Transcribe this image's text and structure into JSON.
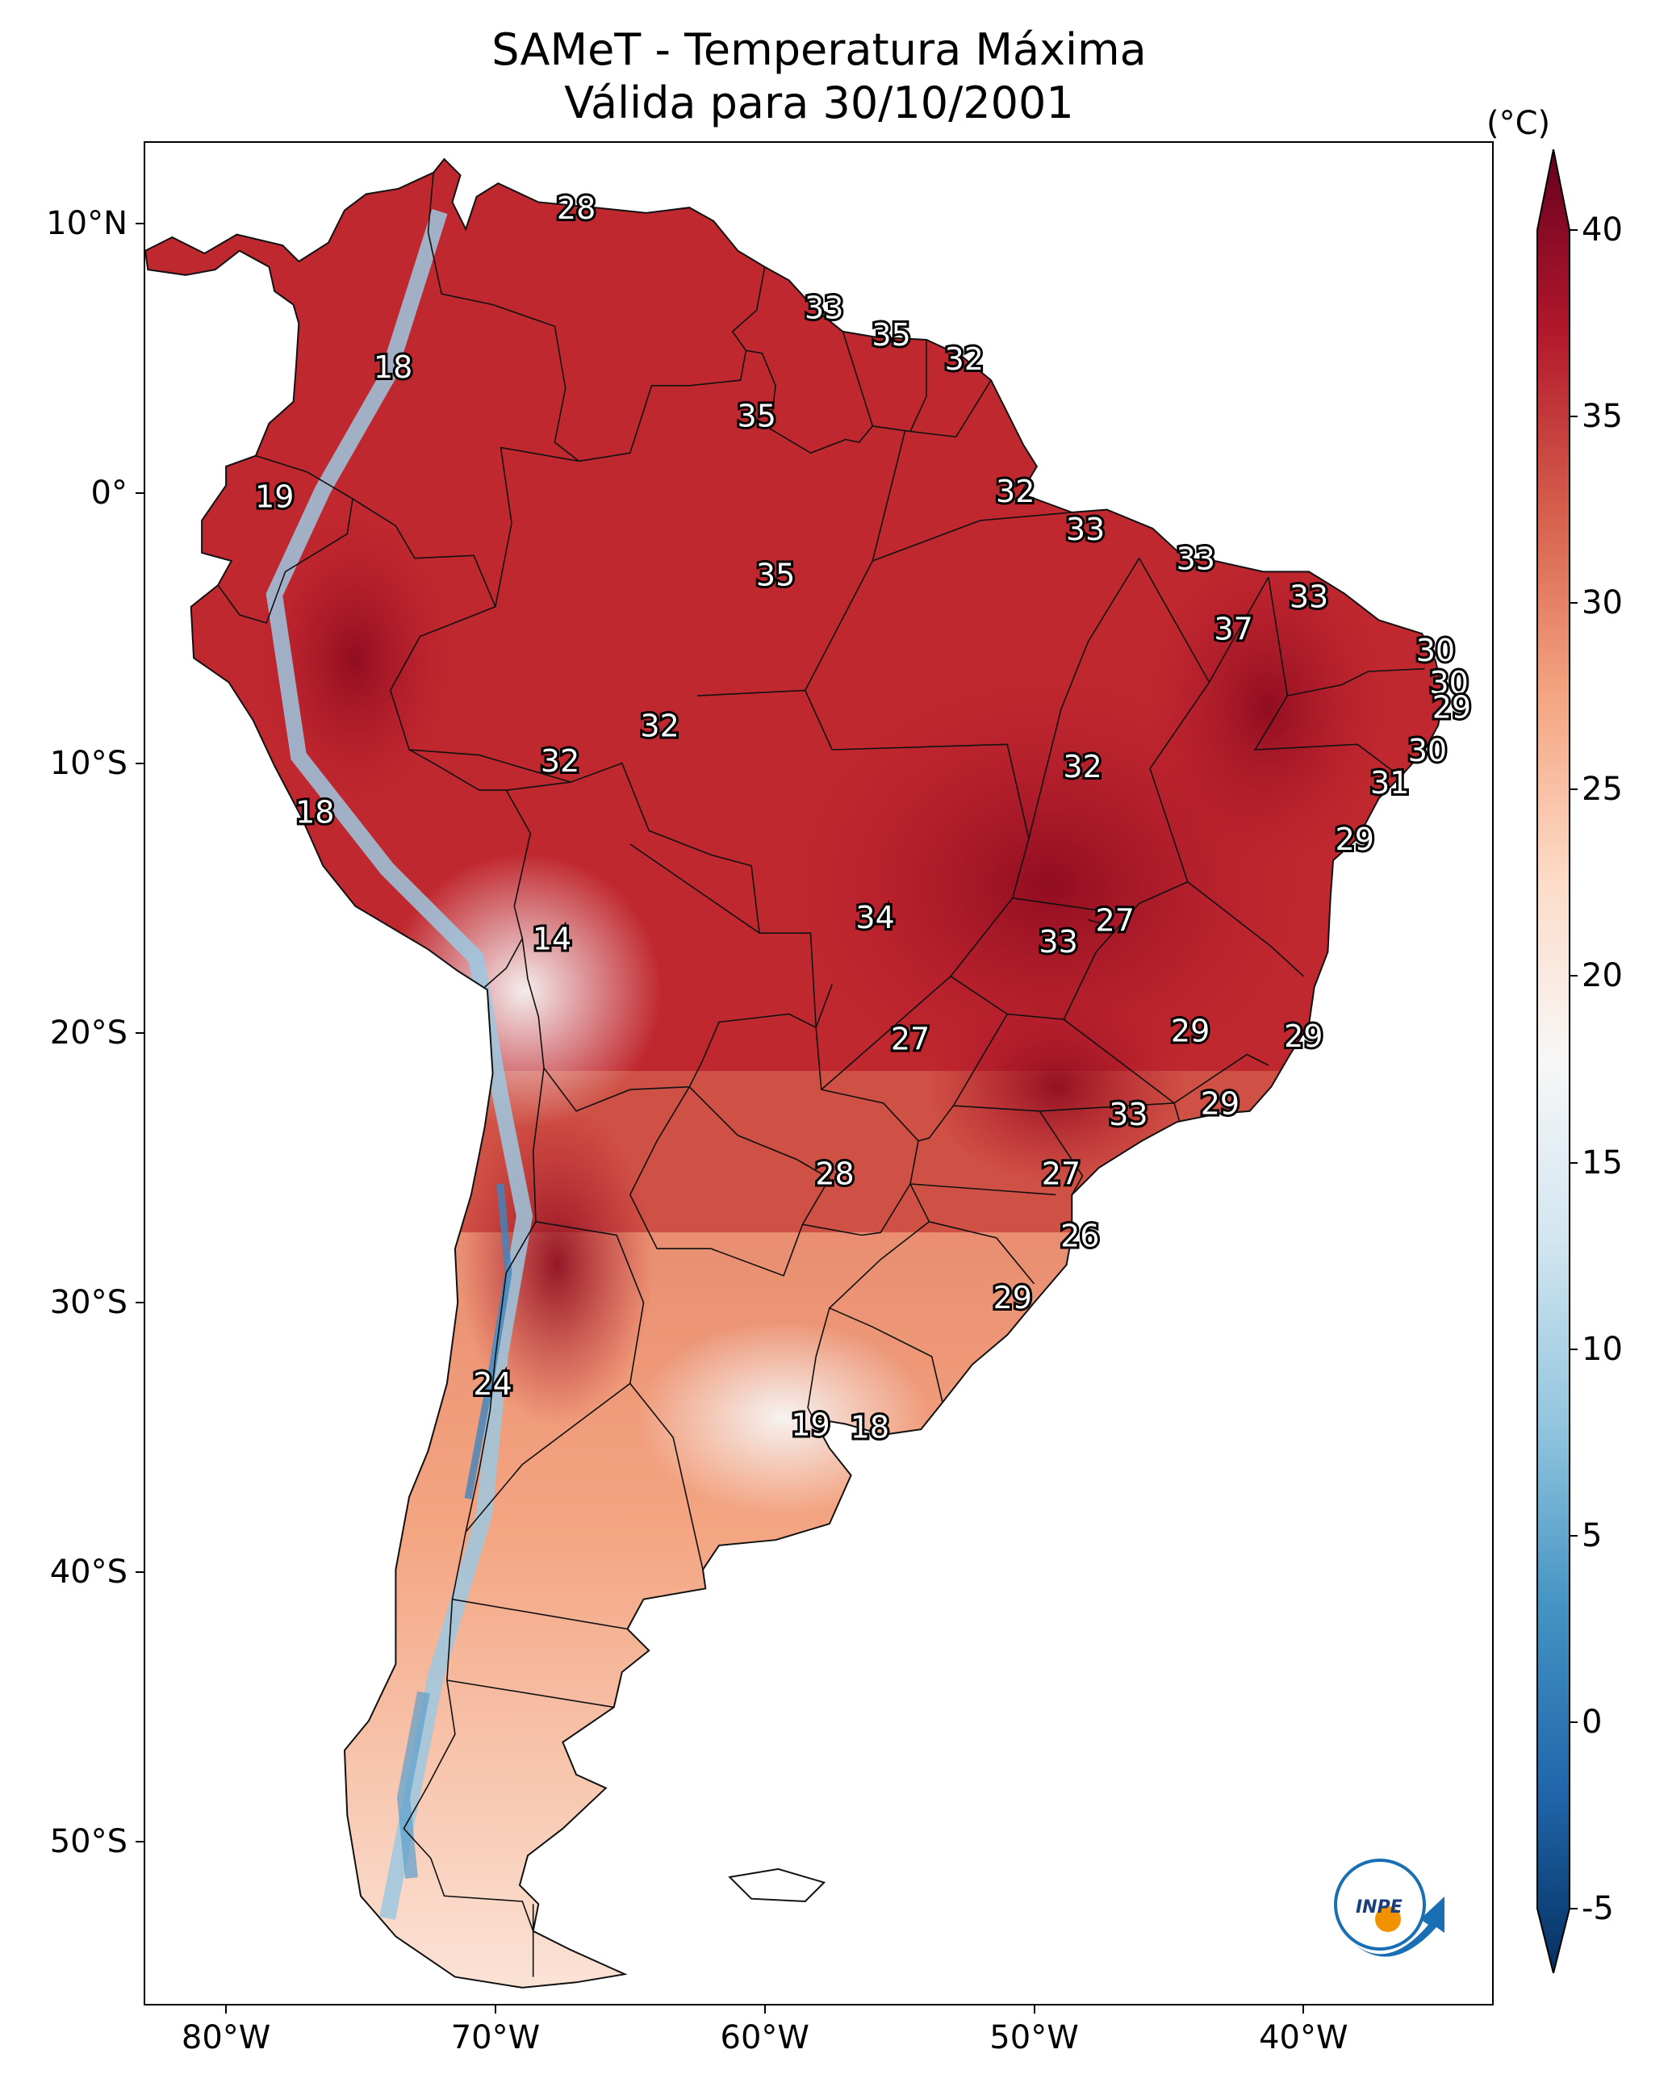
{
  "title": {
    "line1": "SAMeT - Temperatura Máxima",
    "line2": "Válida para 30/10/2001"
  },
  "map": {
    "lon_range": [
      -83,
      -33
    ],
    "lat_range": [
      -56,
      13
    ],
    "y_ticks": [
      {
        "label": "10°N",
        "lat": 10
      },
      {
        "label": "0°",
        "lat": 0
      },
      {
        "label": "10°S",
        "lat": -10
      },
      {
        "label": "20°S",
        "lat": -20
      },
      {
        "label": "30°S",
        "lat": -30
      },
      {
        "label": "40°S",
        "lat": -40
      },
      {
        "label": "50°S",
        "lat": -50
      }
    ],
    "x_ticks": [
      {
        "label": "80°W",
        "lon": -80
      },
      {
        "label": "70°W",
        "lon": -70
      },
      {
        "label": "60°W",
        "lon": -60
      },
      {
        "label": "50°W",
        "lon": -50
      },
      {
        "label": "40°W",
        "lon": -40
      }
    ],
    "labels": [
      {
        "text": "28",
        "lon": -67,
        "lat": 10.5
      },
      {
        "text": "33",
        "lon": -57.8,
        "lat": 6.8
      },
      {
        "text": "35",
        "lon": -55.3,
        "lat": 5.8
      },
      {
        "text": "32",
        "lon": -52.6,
        "lat": 4.9
      },
      {
        "text": "18",
        "lon": -73.8,
        "lat": 4.6
      },
      {
        "text": "35",
        "lon": -60.3,
        "lat": 2.8
      },
      {
        "text": "19",
        "lon": -78.2,
        "lat": -0.2
      },
      {
        "text": "32",
        "lon": -50.7,
        "lat": 0
      },
      {
        "text": "33",
        "lon": -48.1,
        "lat": -1.4
      },
      {
        "text": "33",
        "lon": -44.0,
        "lat": -2.5
      },
      {
        "text": "35",
        "lon": -59.6,
        "lat": -3.1
      },
      {
        "text": "33",
        "lon": -39.8,
        "lat": -3.9
      },
      {
        "text": "37",
        "lon": -42.6,
        "lat": -5.1
      },
      {
        "text": "30",
        "lon": -35.1,
        "lat": -5.9
      },
      {
        "text": "30",
        "lon": -34.6,
        "lat": -7.1
      },
      {
        "text": "29",
        "lon": -34.5,
        "lat": -8.0
      },
      {
        "text": "32",
        "lon": -63.9,
        "lat": -8.7
      },
      {
        "text": "32",
        "lon": -67.6,
        "lat": -10.0
      },
      {
        "text": "32",
        "lon": -48.2,
        "lat": -10.2
      },
      {
        "text": "30",
        "lon": -35.4,
        "lat": -9.6
      },
      {
        "text": "31",
        "lon": -36.8,
        "lat": -10.8
      },
      {
        "text": "18",
        "lon": -76.7,
        "lat": -11.9
      },
      {
        "text": "29",
        "lon": -38.1,
        "lat": -12.9
      },
      {
        "text": "27",
        "lon": -47.0,
        "lat": -15.9
      },
      {
        "text": "34",
        "lon": -55.9,
        "lat": -15.8
      },
      {
        "text": "33",
        "lon": -49.1,
        "lat": -16.7
      },
      {
        "text": "14",
        "lon": -67.9,
        "lat": -16.6
      },
      {
        "text": "29",
        "lon": -44.2,
        "lat": -20.0
      },
      {
        "text": "29",
        "lon": -40.0,
        "lat": -20.2
      },
      {
        "text": "27",
        "lon": -54.6,
        "lat": -20.3
      },
      {
        "text": "29",
        "lon": -43.1,
        "lat": -22.7
      },
      {
        "text": "33",
        "lon": -46.5,
        "lat": -23.1
      },
      {
        "text": "28",
        "lon": -57.4,
        "lat": -25.3
      },
      {
        "text": "27",
        "lon": -49.0,
        "lat": -25.3
      },
      {
        "text": "26",
        "lon": -48.3,
        "lat": -27.6
      },
      {
        "text": "29",
        "lon": -50.8,
        "lat": -29.9
      },
      {
        "text": "24",
        "lon": -70.1,
        "lat": -33.1
      },
      {
        "text": "19",
        "lon": -58.3,
        "lat": -34.6
      },
      {
        "text": "18",
        "lon": -56.1,
        "lat": -34.7
      }
    ]
  },
  "colorbar": {
    "unit": "(°C)",
    "min": -5,
    "max": 40,
    "ticks": [
      "-5",
      "0",
      "5",
      "10",
      "15",
      "20",
      "25",
      "30",
      "35",
      "40"
    ],
    "colors": [
      "#053061",
      "#2166ac",
      "#4393c3",
      "#92c5de",
      "#d1e5f0",
      "#f7f7f7",
      "#fddbc7",
      "#f4a582",
      "#d6604d",
      "#b2182b",
      "#67001f"
    ]
  },
  "logo": {
    "text": "INPE"
  }
}
